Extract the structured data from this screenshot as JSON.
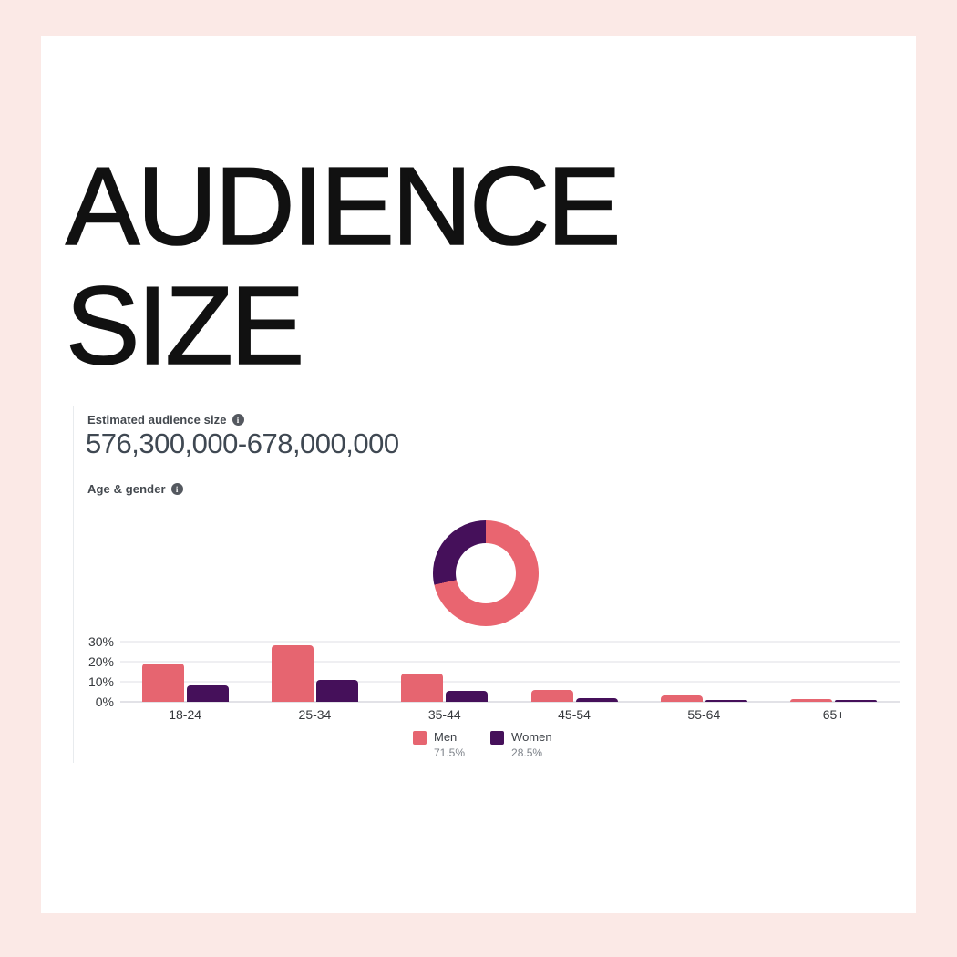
{
  "page": {
    "background_color": "#fbe9e6",
    "card_color": "#ffffff",
    "title_line1": "AUDIENCE",
    "title_line2": "SIZE"
  },
  "icons": {
    "info_glyph": "i"
  },
  "audience_size": {
    "label": "Estimated audience size",
    "value": "576,300,000-678,000,000"
  },
  "age_gender": {
    "label": "Age & gender"
  },
  "chart_data": [
    {
      "type": "pie",
      "subtype": "donut",
      "labels": [
        "Men",
        "Women"
      ],
      "values": [
        71.5,
        28.5
      ],
      "colors": [
        "#e96570",
        "#45105a"
      ],
      "start_angle_deg": 0,
      "direction": "clockwise"
    },
    {
      "type": "bar",
      "title": "Age & gender",
      "categories": [
        "18-24",
        "25-34",
        "35-44",
        "45-54",
        "55-64",
        "65+"
      ],
      "series": [
        {
          "name": "Men",
          "color": "#e66570",
          "values": [
            19,
            28,
            14,
            6,
            3,
            1.5
          ]
        },
        {
          "name": "Women",
          "color": "#45105a",
          "values": [
            8,
            11,
            5.5,
            2,
            1,
            1
          ]
        }
      ],
      "y_ticks": [
        "30%",
        "20%",
        "10%",
        "0%"
      ],
      "y_tick_values": [
        30,
        20,
        10,
        0
      ],
      "ylim": [
        0,
        33
      ],
      "grid": true,
      "legend_position": "bottom",
      "legend": [
        {
          "name": "Men",
          "pct": "71.5%"
        },
        {
          "name": "Women",
          "pct": "28.5%"
        }
      ]
    }
  ]
}
